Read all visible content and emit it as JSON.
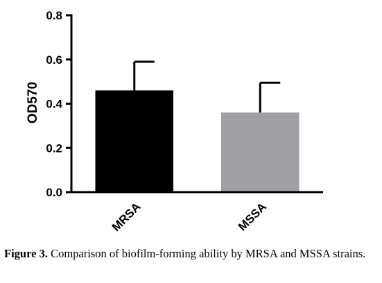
{
  "chart_data": {
    "type": "bar",
    "categories": [
      "MRSA",
      "MSSA"
    ],
    "values": [
      0.46,
      0.36
    ],
    "error_upper": [
      0.59,
      0.495
    ],
    "colors": [
      "#000000",
      "#a0a0a4"
    ],
    "title": "",
    "xlabel": "",
    "ylabel": "OD570",
    "ylim": [
      0,
      0.8
    ],
    "yticks": [
      0.0,
      0.2,
      0.4,
      0.6,
      0.8
    ],
    "ytick_labels": [
      "0.0",
      "0.2",
      "0.4",
      "0.6",
      "0.8"
    ],
    "grid": false,
    "legend": "none"
  },
  "caption": {
    "figure_label": "Figure 3.",
    "text": " Comparison of biofilm-forming ability by MRSA and MSSA strains."
  }
}
